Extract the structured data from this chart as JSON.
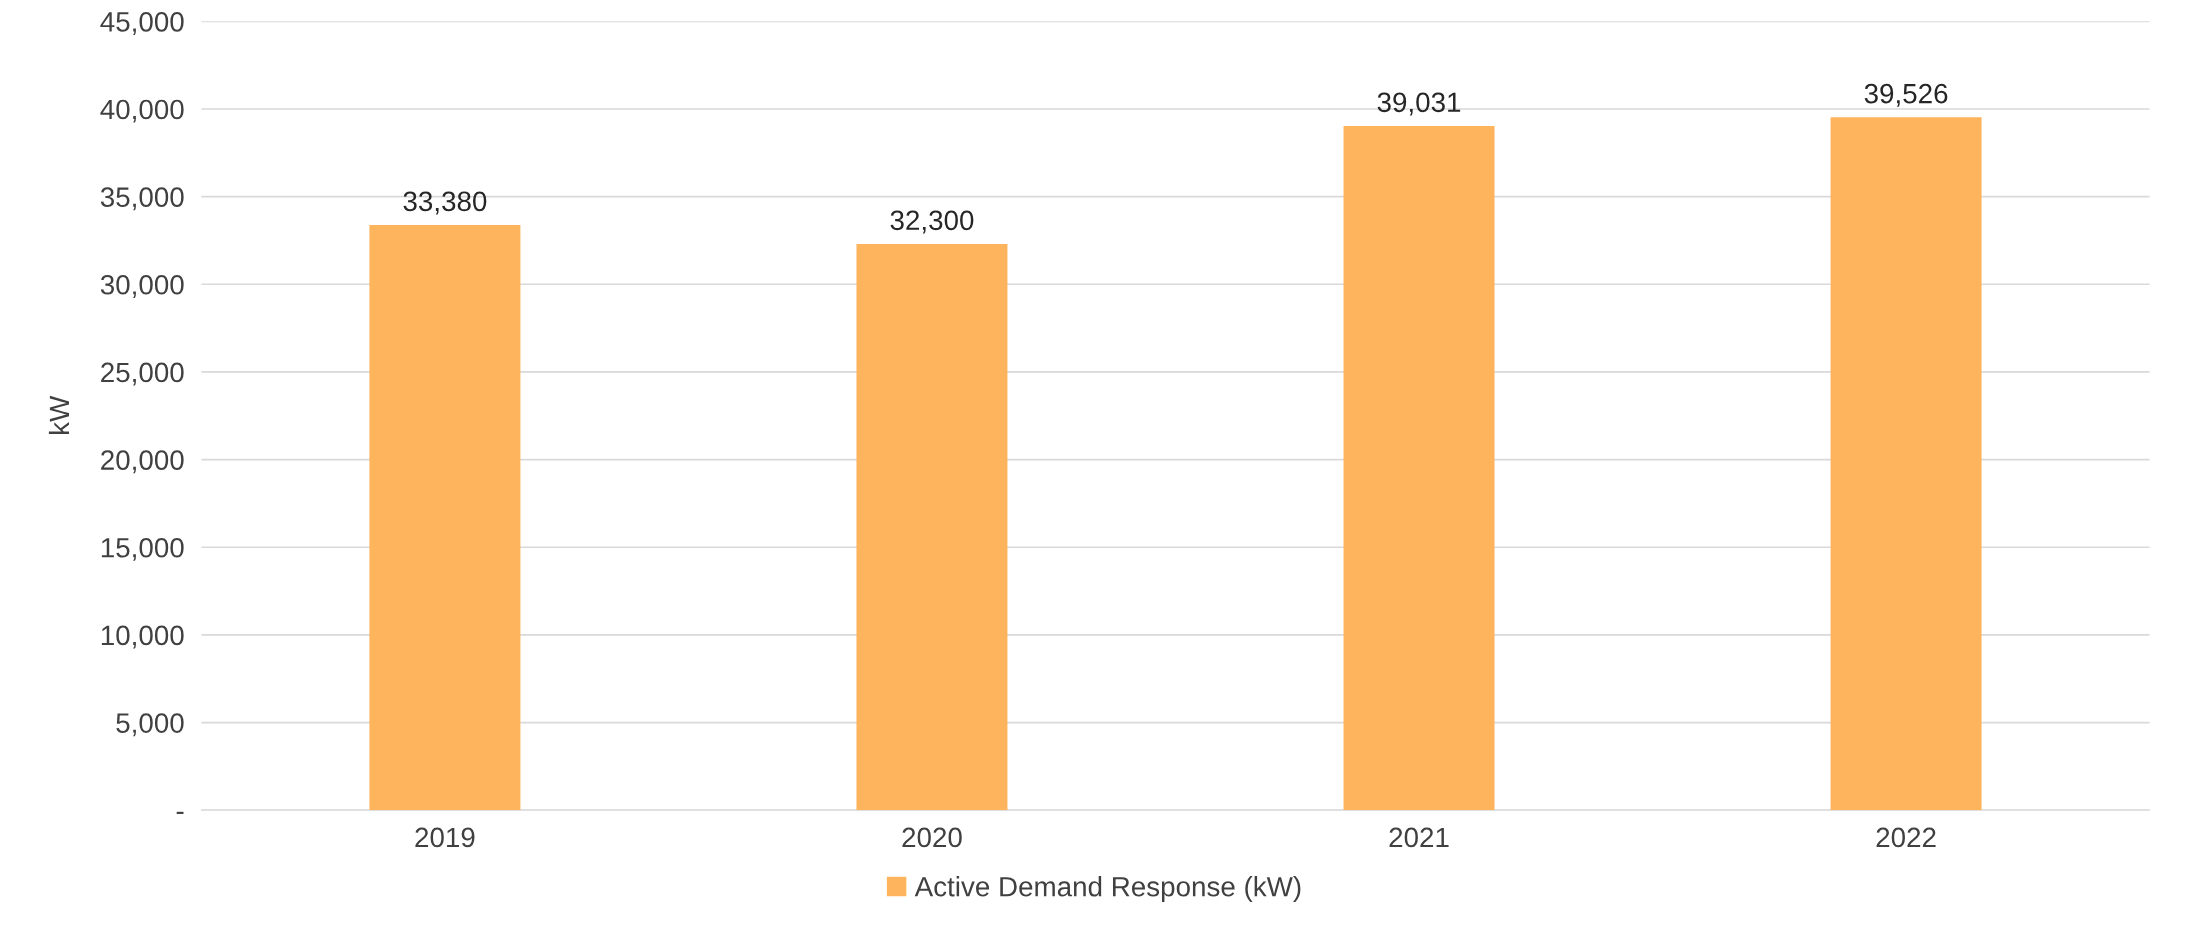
{
  "chart_data": {
    "type": "bar",
    "ylabel": "kW",
    "categories": [
      "2019",
      "2020",
      "2021",
      "2022"
    ],
    "series": [
      {
        "name": "Active Demand Response (kW)",
        "color": "#fdb45c",
        "values": [
          33380,
          32300,
          39031,
          39526
        ],
        "value_labels": [
          "33,380",
          "32,300",
          "39,031",
          "39,526"
        ]
      }
    ],
    "ylim": [
      0,
      45000
    ],
    "yticks": [
      {
        "value": 0,
        "label": "-"
      },
      {
        "value": 5000,
        "label": "5,000"
      },
      {
        "value": 10000,
        "label": "10,000"
      },
      {
        "value": 15000,
        "label": "15,000"
      },
      {
        "value": 20000,
        "label": "20,000"
      },
      {
        "value": 25000,
        "label": "25,000"
      },
      {
        "value": 30000,
        "label": "30,000"
      },
      {
        "value": 35000,
        "label": "35,000"
      },
      {
        "value": 40000,
        "label": "40,000"
      },
      {
        "value": 45000,
        "label": "45,000"
      }
    ],
    "grid": "y",
    "legend": "bottom"
  }
}
